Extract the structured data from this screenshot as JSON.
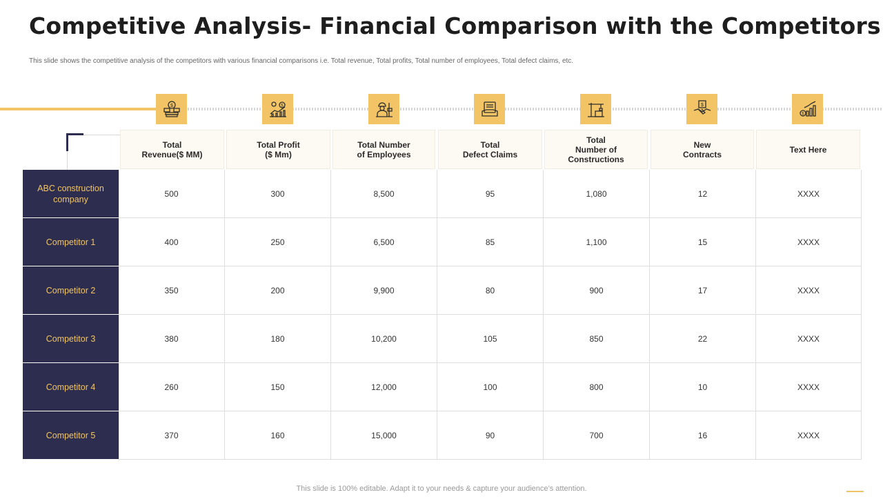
{
  "title": "Competitive Analysis- Financial Comparison with the Competitors",
  "subtitle": "This slide shows the competitive analysis of the competitors with various financial comparisons i.e. Total revenue, Total profits, Total number of employees, Total defect claims, etc.",
  "accent_color": "#f2c465",
  "dark_color": "#2d2e4f",
  "columns": [
    {
      "label": "Total\nRevenue($ MM)",
      "icon": "money-icon"
    },
    {
      "label": "Total Profit\n($ Mm)",
      "icon": "profit-chart-icon"
    },
    {
      "label": "Total Number\nof Employees",
      "icon": "workers-icon"
    },
    {
      "label": "Total\nDefect Claims",
      "icon": "defect-claims-icon"
    },
    {
      "label": "Total\nNumber of\nConstructions",
      "icon": "crane-icon"
    },
    {
      "label": "New\nContracts",
      "icon": "handshake-icon"
    },
    {
      "label": "Text Here",
      "icon": "growth-chart-icon"
    }
  ],
  "rows": [
    {
      "name": "ABC construction company",
      "values": [
        "500",
        "300",
        "8,500",
        "95",
        "1,080",
        "12",
        "XXXX"
      ]
    },
    {
      "name": "Competitor  1",
      "values": [
        "400",
        "250",
        "6,500",
        "85",
        "1,100",
        "15",
        "XXXX"
      ]
    },
    {
      "name": "Competitor  2",
      "values": [
        "350",
        "200",
        "9,900",
        "80",
        "900",
        "17",
        "XXXX"
      ]
    },
    {
      "name": "Competitor  3",
      "values": [
        "380",
        "180",
        "10,200",
        "105",
        "850",
        "22",
        "XXXX"
      ]
    },
    {
      "name": "Competitor  4",
      "values": [
        "260",
        "150",
        "12,000",
        "100",
        "800",
        "10",
        "XXXX"
      ]
    },
    {
      "name": "Competitor  5",
      "values": [
        "370",
        "160",
        "15,000",
        "90",
        "700",
        "16",
        "XXXX"
      ]
    }
  ],
  "footer": "This slide is 100% editable. Adapt it to your needs & capture your audience’s attention."
}
